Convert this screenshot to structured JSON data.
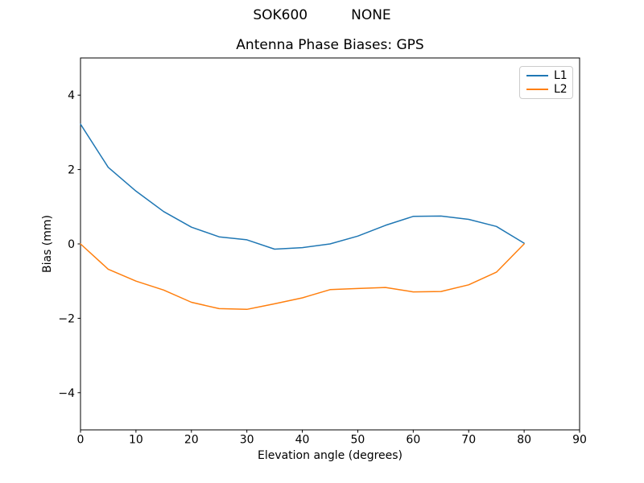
{
  "chart_data": {
    "type": "line",
    "suptitle": "SOK600          NONE",
    "title": "Antenna Phase Biases: GPS",
    "xlabel": "Elevation angle (degrees)",
    "ylabel": "Bias (mm)",
    "xlim": [
      0,
      90
    ],
    "ylim": [
      -5,
      5
    ],
    "xticks": [
      0,
      10,
      20,
      30,
      40,
      50,
      60,
      70,
      80,
      90
    ],
    "yticks": [
      -4,
      -2,
      0,
      2,
      4
    ],
    "grid": false,
    "legend_position": "upper right",
    "x": [
      0,
      5,
      10,
      15,
      20,
      25,
      30,
      35,
      40,
      45,
      50,
      55,
      60,
      65,
      70,
      75,
      80
    ],
    "series": [
      {
        "name": "L1",
        "color": "#1f77b4",
        "values": [
          3.22,
          2.06,
          1.42,
          0.87,
          0.45,
          0.19,
          0.11,
          -0.14,
          -0.1,
          0.0,
          0.21,
          0.5,
          0.74,
          0.75,
          0.66,
          0.47,
          0.02
        ]
      },
      {
        "name": "L2",
        "color": "#ff7f0e",
        "values": [
          0.0,
          -0.68,
          -1.0,
          -1.24,
          -1.57,
          -1.74,
          -1.76,
          -1.61,
          -1.45,
          -1.23,
          -1.2,
          -1.17,
          -1.29,
          -1.28,
          -1.1,
          -0.76,
          0.0
        ]
      }
    ]
  }
}
